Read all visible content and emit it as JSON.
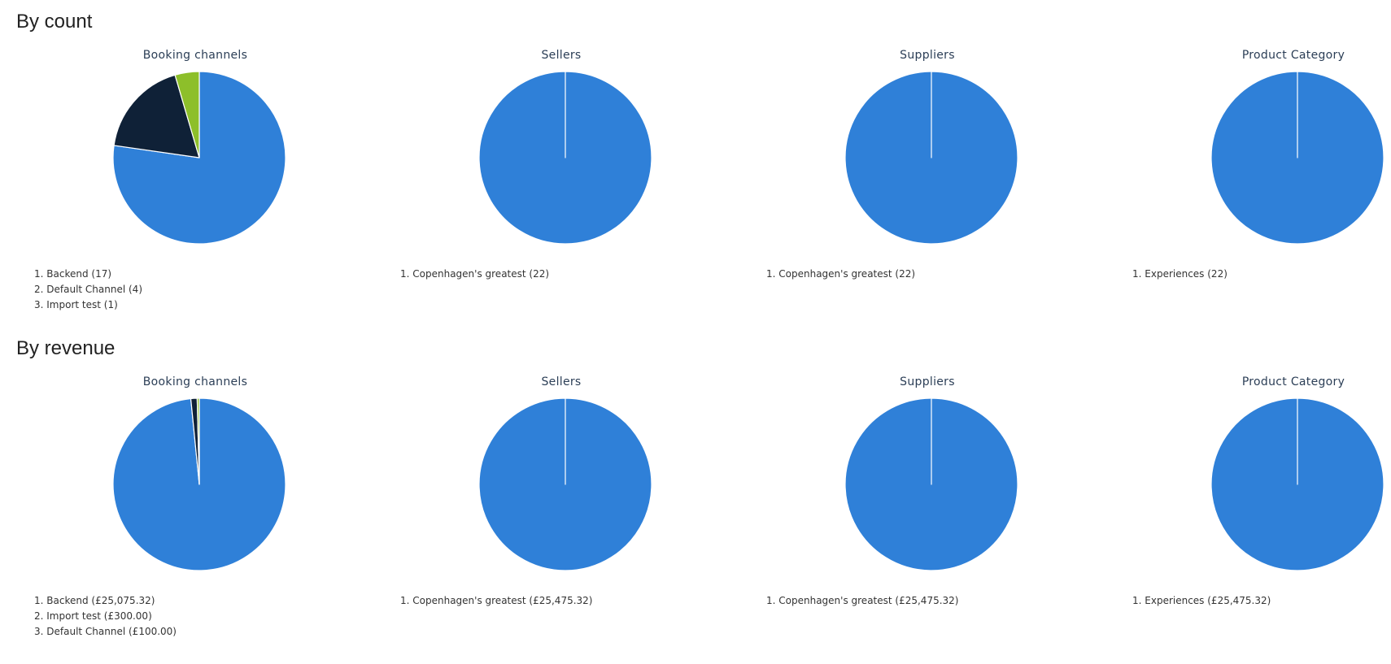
{
  "sections": {
    "count_title": "By count",
    "revenue_title": "By revenue"
  },
  "colors": {
    "blue": "#2f80d8",
    "navy": "#0f2137",
    "green": "#8dbf2a"
  },
  "chart_data": [
    {
      "type": "pie",
      "section": "By count",
      "title": "Booking channels",
      "slices": [
        {
          "label": "Backend",
          "value": 17,
          "display": "1. Backend (17)",
          "color": "#2f80d8"
        },
        {
          "label": "Default Channel",
          "value": 4,
          "display": "2. Default Channel (4)",
          "color": "#0f2137"
        },
        {
          "label": "Import test",
          "value": 1,
          "display": "3. Import test (1)",
          "color": "#8dbf2a"
        }
      ]
    },
    {
      "type": "pie",
      "section": "By count",
      "title": "Sellers",
      "slices": [
        {
          "label": "Copenhagen's greatest",
          "value": 22,
          "display": "1. Copenhagen's greatest (22)",
          "color": "#2f80d8"
        }
      ]
    },
    {
      "type": "pie",
      "section": "By count",
      "title": "Suppliers",
      "slices": [
        {
          "label": "Copenhagen's greatest",
          "value": 22,
          "display": "1. Copenhagen's greatest (22)",
          "color": "#2f80d8"
        }
      ]
    },
    {
      "type": "pie",
      "section": "By count",
      "title": "Product Category",
      "slices": [
        {
          "label": "Experiences",
          "value": 22,
          "display": "1. Experiences (22)",
          "color": "#2f80d8"
        }
      ]
    },
    {
      "type": "pie",
      "section": "By revenue",
      "title": "Booking channels",
      "slices": [
        {
          "label": "Backend",
          "value": 25075.32,
          "display": "1. Backend (£25,075.32)",
          "color": "#2f80d8"
        },
        {
          "label": "Import test",
          "value": 300.0,
          "display": "2. Import test (£300.00)",
          "color": "#0f2137"
        },
        {
          "label": "Default Channel",
          "value": 100.0,
          "display": "3. Default Channel (£100.00)",
          "color": "#8dbf2a"
        }
      ]
    },
    {
      "type": "pie",
      "section": "By revenue",
      "title": "Sellers",
      "slices": [
        {
          "label": "Copenhagen's greatest",
          "value": 25475.32,
          "display": "1. Copenhagen's greatest (£25,475.32)",
          "color": "#2f80d8"
        }
      ]
    },
    {
      "type": "pie",
      "section": "By revenue",
      "title": "Suppliers",
      "slices": [
        {
          "label": "Copenhagen's greatest",
          "value": 25475.32,
          "display": "1. Copenhagen's greatest (£25,475.32)",
          "color": "#2f80d8"
        }
      ]
    },
    {
      "type": "pie",
      "section": "By revenue",
      "title": "Product Category",
      "slices": [
        {
          "label": "Experiences",
          "value": 25475.32,
          "display": "1. Experiences (£25,475.32)",
          "color": "#2f80d8"
        }
      ]
    }
  ]
}
